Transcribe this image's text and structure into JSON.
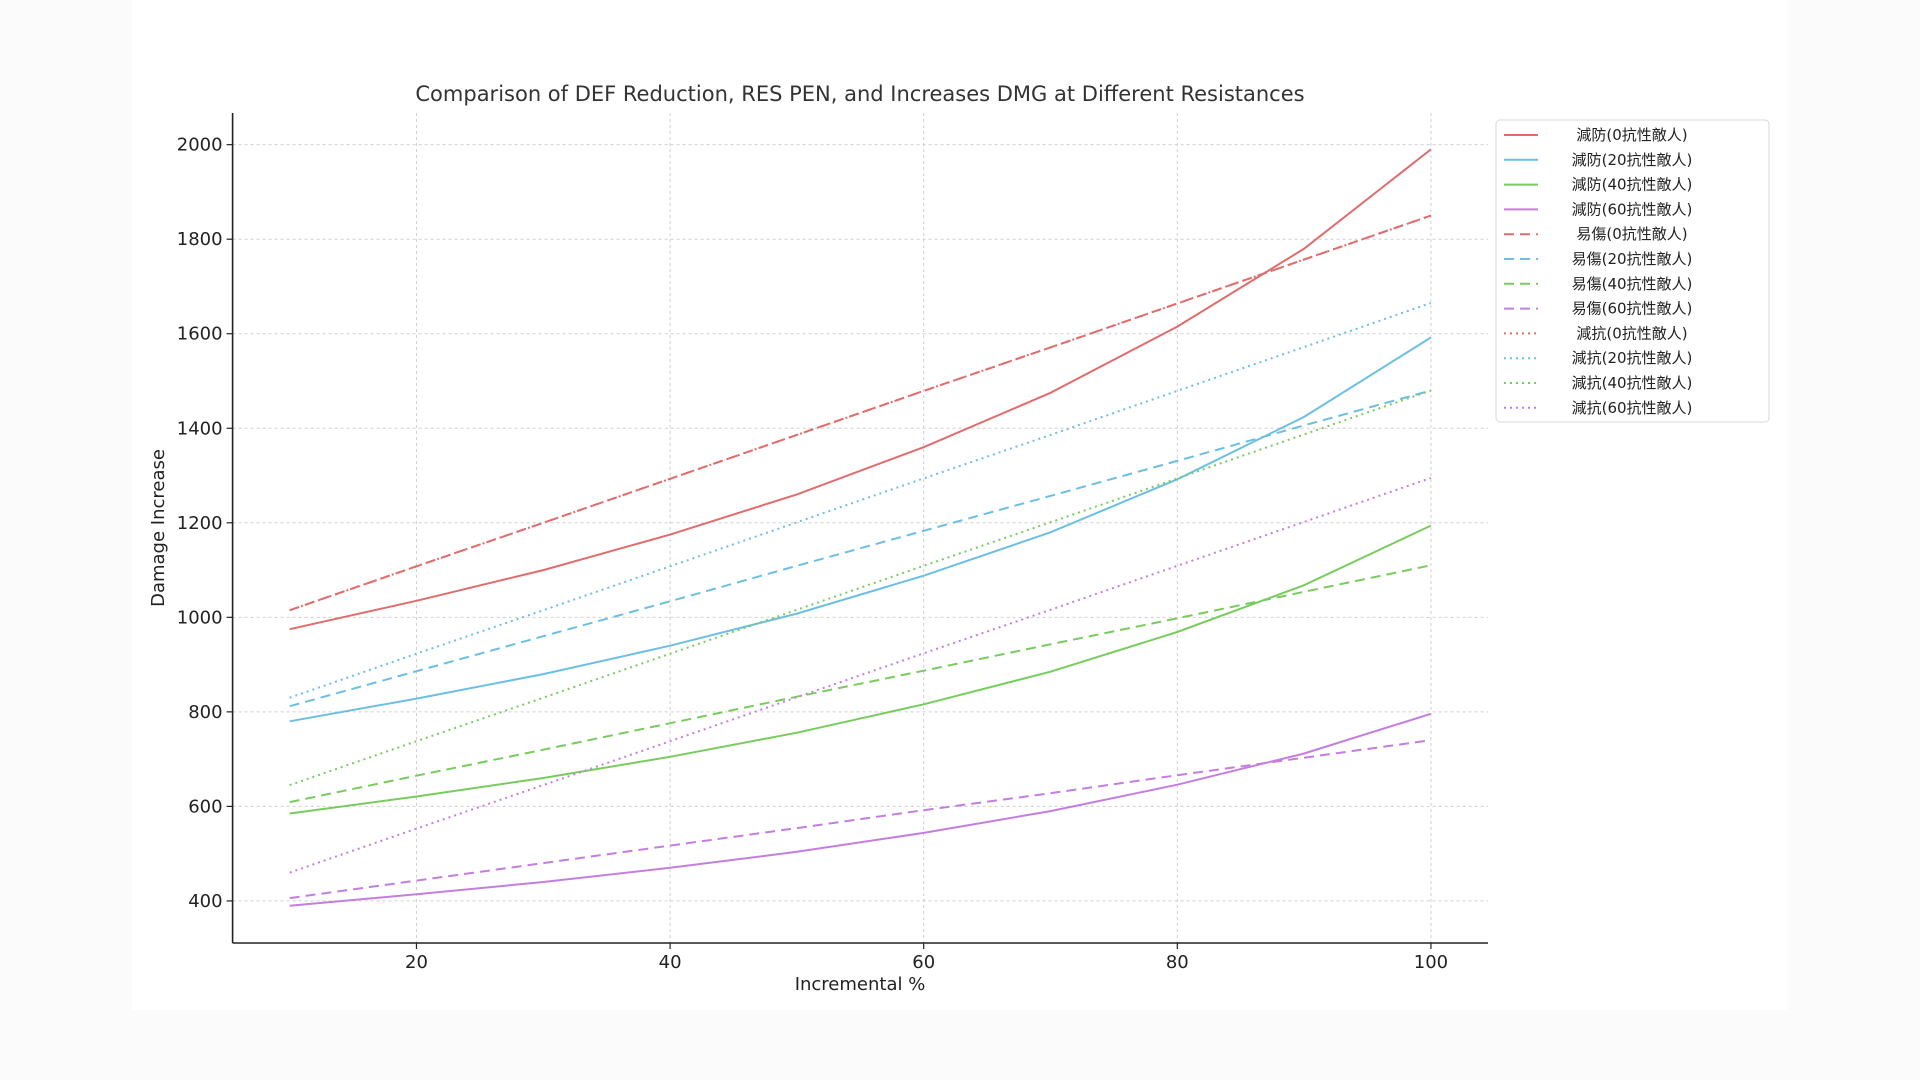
{
  "chart_data": {
    "type": "line",
    "title": "Comparison of DEF Reduction, RES PEN, and Increases DMG at Different Resistances",
    "xlabel": "Incremental %",
    "ylabel": "Damage Increase",
    "xlim": [
      5.5,
      104.5
    ],
    "ylim": [
      311,
      2067
    ],
    "xticks": [
      20,
      40,
      60,
      80,
      100
    ],
    "yticks": [
      400,
      600,
      800,
      1000,
      1200,
      1400,
      1600,
      1800,
      2000
    ],
    "grid": true,
    "legend_position": "upper-right outside",
    "x": [
      10,
      20,
      30,
      40,
      50,
      60,
      70,
      80,
      90,
      100
    ],
    "series": [
      {
        "name": "減防(0抗性敵人)",
        "color": "#e06c6c",
        "style": "solid",
        "values": [
          975,
          1035,
          1100,
          1175,
          1260,
          1360,
          1475,
          1615,
          1780,
          1990
        ]
      },
      {
        "name": "減防(20抗性敵人)",
        "color": "#6cbfe2",
        "style": "solid",
        "values": [
          780,
          828,
          880,
          940,
          1008,
          1088,
          1180,
          1292,
          1424,
          1592
        ]
      },
      {
        "name": "減防(40抗性敵人)",
        "color": "#78cc5e",
        "style": "solid",
        "values": [
          585,
          621,
          660,
          705,
          756,
          816,
          885,
          969,
          1068,
          1194
        ]
      },
      {
        "name": "減防(60抗性敵人)",
        "color": "#c47ee0",
        "style": "solid",
        "values": [
          390,
          414,
          440,
          470,
          504,
          544,
          590,
          646,
          712,
          796
        ]
      },
      {
        "name": "易傷(0抗性敵人)",
        "color": "#e06c6c",
        "style": "dashed",
        "values": [
          1015,
          1108,
          1200,
          1293,
          1386,
          1479,
          1571,
          1664,
          1757,
          1850
        ]
      },
      {
        "name": "易傷(20抗性敵人)",
        "color": "#6cbfe2",
        "style": "dashed",
        "values": [
          812,
          886,
          960,
          1034,
          1109,
          1183,
          1257,
          1331,
          1406,
          1480
        ]
      },
      {
        "name": "易傷(40抗性敵人)",
        "color": "#78cc5e",
        "style": "dashed",
        "values": [
          609,
          665,
          720,
          776,
          832,
          887,
          943,
          998,
          1054,
          1110
        ]
      },
      {
        "name": "易傷(60抗性敵人)",
        "color": "#c47ee0",
        "style": "dashed",
        "values": [
          406,
          443,
          480,
          517,
          554,
          592,
          628,
          666,
          703,
          740
        ]
      },
      {
        "name": "減抗(0抗性敵人)",
        "color": "#e06c6c",
        "style": "dotted",
        "values": [
          1015,
          1108,
          1200,
          1293,
          1386,
          1479,
          1571,
          1664,
          1757,
          1850
        ]
      },
      {
        "name": "減抗(20抗性敵人)",
        "color": "#6cbfe2",
        "style": "dotted",
        "values": [
          830,
          923,
          1015,
          1108,
          1201,
          1294,
          1386,
          1479,
          1572,
          1665
        ]
      },
      {
        "name": "減抗(40抗性敵人)",
        "color": "#78cc5e",
        "style": "dotted",
        "values": [
          645,
          738,
          830,
          923,
          1016,
          1109,
          1201,
          1294,
          1387,
          1480
        ]
      },
      {
        "name": "減抗(60抗性敵人)",
        "color": "#c47ee0",
        "style": "dotted",
        "values": [
          460,
          553,
          645,
          738,
          831,
          924,
          1016,
          1109,
          1202,
          1295
        ]
      }
    ]
  }
}
